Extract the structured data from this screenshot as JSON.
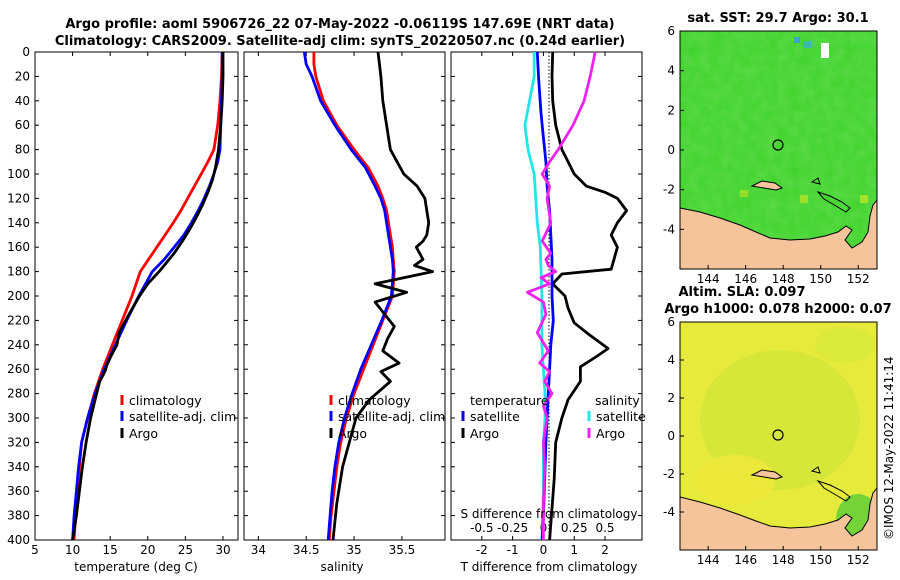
{
  "title": {
    "line1": "Argo profile: aoml 5906726_22 07-May-2022 -0.06119S 147.69E (NRT data)",
    "line2": "Climatology: CARS2009. Satellite-adj clim: synTS_20220507.nc (0.24d earlier)"
  },
  "stamp": "©IMOS 12-May-2022 11:41:14",
  "colors": {
    "climatology": "#ff0000",
    "satellite": "#0000ff",
    "argo": "#000000",
    "temperature_satellite": "#22e6e6",
    "salinity_argo": "#ee22ee"
  },
  "chart_data": [
    {
      "type": "line",
      "name": "temperature",
      "xlabel": "temperature (deg C)",
      "ylabel": "",
      "xlim": [
        5,
        32
      ],
      "ylim": [
        0,
        400
      ],
      "xticks": [
        "5",
        "10",
        "15",
        "20",
        "25",
        "30"
      ],
      "yticks": [
        "0",
        "20",
        "40",
        "60",
        "80",
        "100",
        "120",
        "140",
        "160",
        "180",
        "200",
        "220",
        "240",
        "260",
        "280",
        "300",
        "320",
        "340",
        "360",
        "380",
        "400"
      ],
      "legend": [
        "climatology",
        "satellite-adj. clim",
        "Argo"
      ],
      "series": [
        {
          "name": "climatology",
          "x": [
            29.9,
            29.8,
            29.6,
            29.3,
            28.8,
            28.0,
            27.1,
            26.2,
            25.3,
            24.4,
            23.4,
            22.3,
            21.2,
            20.1,
            19.0,
            17.9,
            16.6,
            15.3,
            14.0,
            12.9,
            12.0,
            11.2,
            10.9,
            10.6,
            10.4,
            10.2
          ],
          "y": [
            0,
            20,
            40,
            60,
            80,
            90,
            100,
            110,
            120,
            130,
            140,
            150,
            160,
            170,
            180,
            200,
            220,
            240,
            260,
            280,
            300,
            320,
            340,
            360,
            380,
            400
          ]
        },
        {
          "name": "satellite-adj. clim",
          "x": [
            29.9,
            29.9,
            29.8,
            29.7,
            29.6,
            29.3,
            28.8,
            28.2,
            27.5,
            26.7,
            25.8,
            24.8,
            23.5,
            22.2,
            20.6,
            18.8,
            17.2,
            15.7,
            14.2,
            13.0,
            12.0,
            11.2,
            10.8,
            10.5,
            10.2,
            10.0
          ],
          "y": [
            0,
            20,
            40,
            60,
            80,
            90,
            100,
            110,
            120,
            130,
            140,
            150,
            160,
            170,
            180,
            200,
            220,
            240,
            260,
            280,
            300,
            320,
            340,
            360,
            380,
            400
          ]
        },
        {
          "name": "Argo",
          "x": [
            30.0,
            30.0,
            30.0,
            29.9,
            29.7,
            29.4,
            29.0,
            28.6,
            28.0,
            27.3,
            26.5,
            25.6,
            24.6,
            23.5,
            21.5,
            20.0,
            18.9,
            17.5,
            16.2,
            15.9,
            15.2,
            14.6,
            14.3,
            13.6,
            13.0,
            12.4,
            11.8,
            11.3,
            10.9,
            10.5,
            10.0
          ],
          "y": [
            0,
            10,
            20,
            40,
            60,
            80,
            95,
            105,
            115,
            125,
            135,
            145,
            155,
            165,
            180,
            190,
            200,
            215,
            230,
            240,
            248,
            256,
            262,
            270,
            285,
            300,
            320,
            340,
            360,
            380,
            400
          ]
        }
      ]
    },
    {
      "type": "line",
      "name": "salinity",
      "xlabel": "salinity",
      "ylabel": "",
      "xlim": [
        33.85,
        35.95
      ],
      "ylim": [
        0,
        400
      ],
      "xticks": [
        "34",
        "34.5",
        "35",
        "35.5"
      ],
      "legend": [
        "climatology",
        "satellite-adj. clim",
        "Argo"
      ],
      "series": [
        {
          "name": "climatology",
          "x": [
            34.58,
            34.58,
            34.6,
            34.68,
            34.82,
            35.0,
            35.15,
            35.25,
            35.3,
            35.34,
            35.36,
            35.38,
            35.4,
            35.41,
            35.42,
            35.4,
            35.3,
            35.2,
            35.1,
            35.0,
            34.92,
            34.86,
            34.82,
            34.79,
            34.76,
            34.74
          ],
          "y": [
            0,
            10,
            20,
            40,
            60,
            80,
            95,
            110,
            120,
            130,
            140,
            150,
            160,
            170,
            180,
            200,
            220,
            240,
            260,
            280,
            300,
            320,
            340,
            360,
            380,
            400
          ]
        },
        {
          "name": "satellite-adj. clim",
          "x": [
            34.48,
            34.5,
            34.56,
            34.65,
            34.8,
            34.97,
            35.12,
            35.22,
            35.28,
            35.32,
            35.34,
            35.36,
            35.38,
            35.4,
            35.41,
            35.39,
            35.29,
            35.18,
            35.07,
            34.98,
            34.9,
            34.84,
            34.8,
            34.77,
            34.75,
            34.73
          ],
          "y": [
            0,
            10,
            20,
            40,
            60,
            80,
            95,
            110,
            120,
            130,
            140,
            150,
            160,
            170,
            180,
            200,
            220,
            240,
            260,
            280,
            300,
            320,
            340,
            360,
            380,
            400
          ]
        },
        {
          "name": "Argo",
          "x": [
            35.25,
            35.28,
            35.3,
            35.34,
            35.38,
            35.45,
            35.52,
            35.66,
            35.74,
            35.78,
            35.76,
            35.72,
            35.65,
            35.72,
            35.63,
            35.82,
            35.22,
            35.55,
            35.22,
            35.42,
            35.35,
            35.3,
            35.47,
            35.28,
            35.38,
            35.16,
            35.02,
            34.95,
            34.88,
            34.82,
            34.78
          ],
          "y": [
            0,
            20,
            40,
            60,
            80,
            90,
            100,
            110,
            120,
            140,
            150,
            155,
            160,
            170,
            175,
            180,
            190,
            197,
            205,
            225,
            235,
            245,
            255,
            262,
            270,
            285,
            300,
            320,
            340,
            370,
            400
          ]
        }
      ]
    },
    {
      "type": "line",
      "name": "difference from climatology",
      "xlabel": "T difference from climatology",
      "xlabel_top": "S difference from climatology",
      "xlim": [
        -3,
        3.2
      ],
      "ylim": [
        0,
        400
      ],
      "xticks": [
        "-2",
        "-1",
        "0",
        "1",
        "2"
      ],
      "xticks_top": [
        "-0.5",
        "-0.25",
        "0",
        "0.25",
        "0.5"
      ],
      "legend_temperature": {
        "header": "temperature",
        "items": [
          "satellite",
          "Argo"
        ]
      },
      "legend_salinity": {
        "header": "salinity",
        "items": [
          "satellite",
          "Argo"
        ]
      },
      "series": [
        {
          "name": "temperature satellite",
          "x": [
            -0.3,
            -0.3,
            -0.45,
            -0.6,
            -0.5,
            -0.3,
            -0.2,
            -0.1,
            -0.05,
            -0.05,
            0.0,
            0.05,
            0.05,
            0.0,
            0.0,
            0.0,
            -0.05
          ],
          "y": [
            0,
            20,
            40,
            60,
            80,
            100,
            140,
            160,
            200,
            240,
            260,
            280,
            300,
            320,
            340,
            360,
            400
          ]
        },
        {
          "name": "temperature Argo",
          "x": [
            0.3,
            0.28,
            0.3,
            0.4,
            0.6,
            0.8,
            1.0,
            1.4,
            2.0,
            2.4,
            2.7,
            2.4,
            2.2,
            2.4,
            2.2,
            0.6,
            0.3,
            0.7,
            0.8,
            1.0,
            1.5,
            2.1,
            1.7,
            1.2,
            1.2,
            0.8,
            0.6,
            0.4,
            0.35,
            0.2
          ],
          "y": [
            0,
            20,
            40,
            60,
            80,
            90,
            100,
            110,
            115,
            120,
            130,
            140,
            150,
            160,
            178,
            182,
            190,
            200,
            210,
            222,
            232,
            243,
            250,
            258,
            270,
            285,
            300,
            320,
            350,
            400
          ]
        },
        {
          "name": "salinity satellite",
          "x": [
            -0.05,
            -0.04,
            -0.02,
            0.0,
            0.02,
            0.03,
            0.05,
            0.06,
            0.07,
            0.07,
            0.08,
            0.06,
            0.05,
            0.04,
            0.03,
            0.02,
            0.01,
            0.0,
            -0.01
          ],
          "y": [
            0,
            20,
            50,
            70,
            90,
            110,
            130,
            150,
            170,
            200,
            220,
            240,
            260,
            280,
            300,
            320,
            350,
            380,
            400
          ]
        },
        {
          "name": "salinity Argo",
          "x": [
            0.42,
            0.38,
            0.33,
            0.24,
            0.12,
            0.05,
            -0.01,
            0.05,
            0.03,
            0.06,
            -0.01,
            0.06,
            0.02,
            0.04,
            0.1,
            -0.02,
            0.05,
            -0.13,
            0.0,
            0.02,
            -0.05,
            0.04,
            -0.03,
            0.05,
            0.01,
            0.07,
            0.0,
            0.03,
            0.0,
            0.01,
            0.0,
            0.0
          ],
          "y": [
            0,
            20,
            40,
            60,
            80,
            90,
            100,
            110,
            120,
            140,
            155,
            165,
            170,
            175,
            180,
            185,
            190,
            197,
            205,
            215,
            230,
            245,
            255,
            262,
            270,
            280,
            290,
            300,
            320,
            340,
            370,
            400
          ]
        }
      ]
    },
    {
      "type": "heatmap",
      "name": "satellite SST map",
      "title": "sat. SST: 29.7 Argo: 30.1",
      "xlim": [
        142.5,
        153
      ],
      "ylim": [
        -6,
        6
      ],
      "xticks": [
        "144",
        "146",
        "148",
        "150",
        "152"
      ],
      "yticks": [
        "6",
        "4",
        "2",
        "0",
        "-2",
        "-4"
      ],
      "marker": {
        "lon": 147.69,
        "lat": -0.06
      }
    },
    {
      "type": "heatmap",
      "name": "altimetry SLA map",
      "title": "Altim. SLA: 0.097",
      "subtitle": "Argo h1000: 0.078 h2000: 0.07",
      "xlim": [
        142.5,
        153
      ],
      "ylim": [
        -6,
        6
      ],
      "xticks": [
        "144",
        "146",
        "148",
        "150",
        "152"
      ],
      "yticks": [
        "6",
        "4",
        "2",
        "0",
        "-2",
        "-4"
      ],
      "marker": {
        "lon": 147.69,
        "lat": -0.06
      }
    }
  ]
}
